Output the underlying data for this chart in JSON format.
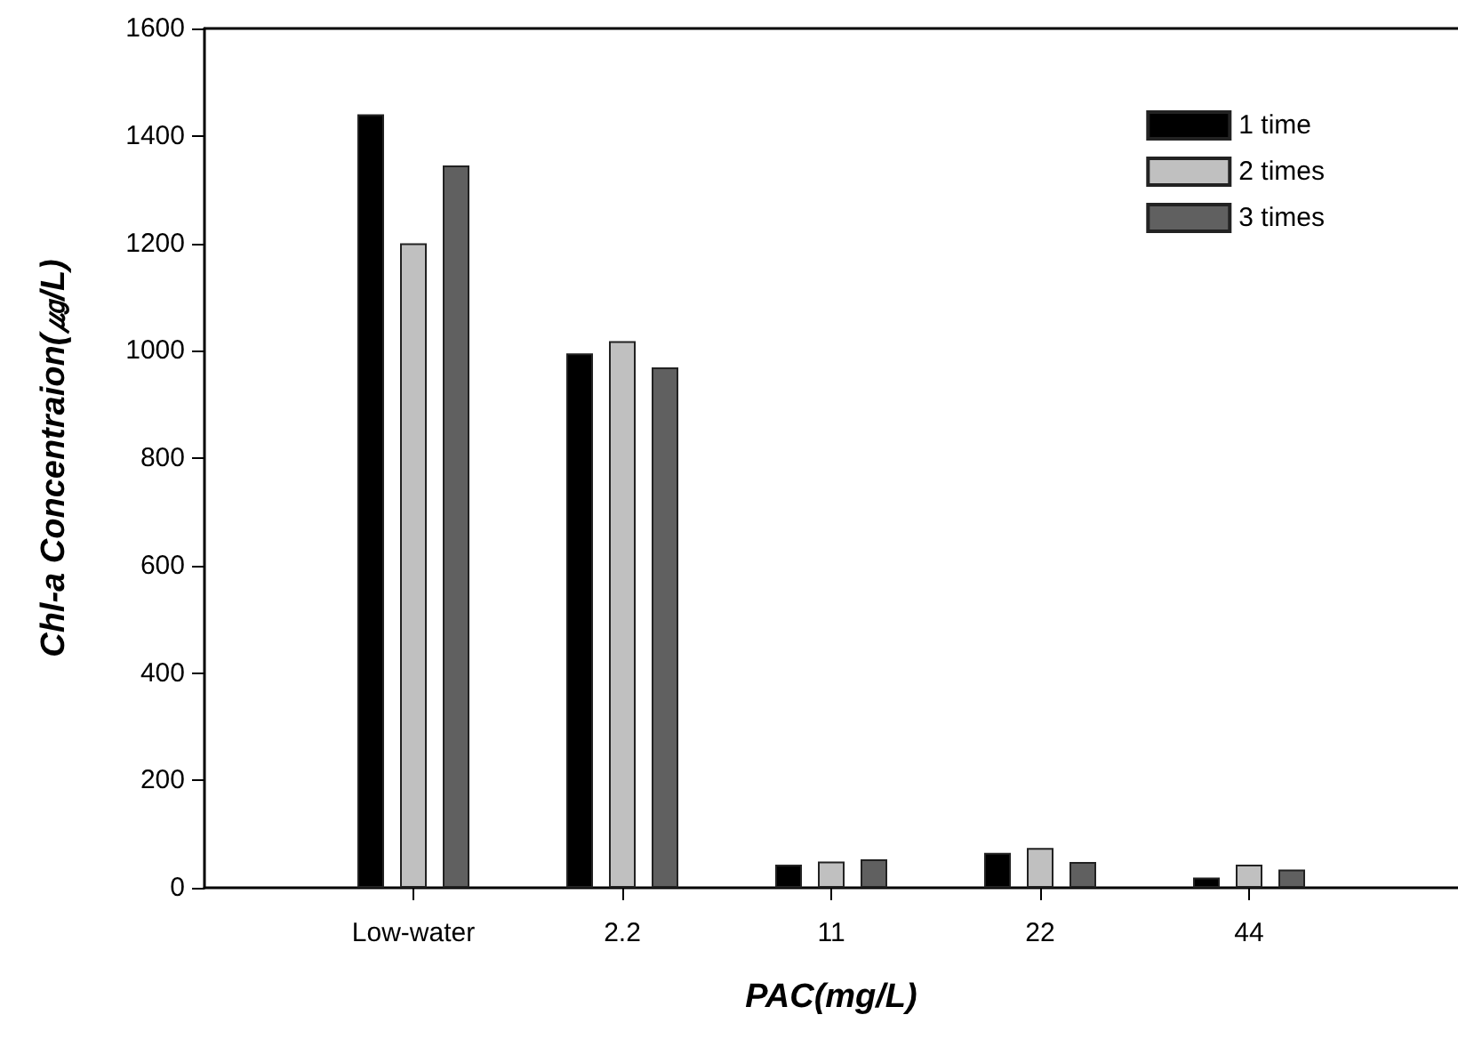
{
  "chart_data": {
    "type": "bar",
    "xlabel": "PAC(mg/L)",
    "ylabel": "Chl-a Concentraion(㎍/L)",
    "categories": [
      "Low-water",
      "2.2",
      "11",
      "22",
      "44"
    ],
    "series": [
      {
        "name": "1 time",
        "color": "#000000",
        "values": [
          1440,
          995,
          43,
          65,
          19
        ]
      },
      {
        "name": "2 times",
        "color": "#c0c0c0",
        "values": [
          1200,
          1018,
          49,
          74,
          43
        ]
      },
      {
        "name": "3 times",
        "color": "#606060",
        "values": [
          1345,
          969,
          53,
          48,
          34
        ]
      }
    ],
    "ylim": [
      0,
      1600
    ],
    "yticks": [
      0,
      200,
      400,
      600,
      800,
      1000,
      1200,
      1400,
      1600
    ],
    "grid": false,
    "legend": "top right"
  }
}
